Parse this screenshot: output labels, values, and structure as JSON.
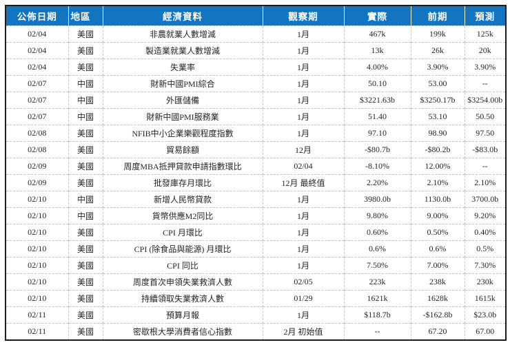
{
  "table": {
    "headers": [
      "公佈日期",
      "地區",
      "經濟資料",
      "觀察期",
      "實際",
      "前期",
      "預測"
    ],
    "rows": [
      [
        "02/04",
        "美國",
        "非農就業人數增減",
        "1月",
        "467k",
        "199k",
        "125k"
      ],
      [
        "02/04",
        "美國",
        "製造業就業人數增減",
        "1月",
        "13k",
        "26k",
        "20k"
      ],
      [
        "02/04",
        "美國",
        "失業率",
        "1月",
        "4.00%",
        "3.90%",
        "3.90%"
      ],
      [
        "02/07",
        "中國",
        "財新中國PMI綜合",
        "1月",
        "50.10",
        "53.00",
        "--"
      ],
      [
        "02/07",
        "中國",
        "外匯儲備",
        "1月",
        "$3221.63b",
        "$3250.17b",
        "$3254.00b"
      ],
      [
        "02/07",
        "中國",
        "財新中國PMI服務業",
        "1月",
        "51.40",
        "53.10",
        "50.50"
      ],
      [
        "02/08",
        "美國",
        "NFIB中小企業樂觀程度指數",
        "1月",
        "97.10",
        "98.90",
        "97.50"
      ],
      [
        "02/08",
        "美國",
        "貿易餘額",
        "12月",
        "-$80.7b",
        "-$80.2b",
        "-$83.0b"
      ],
      [
        "02/09",
        "美國",
        "周度MBA抵押貸款申請指數環比",
        "02/04",
        "-8.10%",
        "12.00%",
        "--"
      ],
      [
        "02/09",
        "美國",
        "批發庫存月環比",
        "12月 最終值",
        "2.20%",
        "2.10%",
        "2.10%"
      ],
      [
        "02/10",
        "中國",
        "新增人民幣貸款",
        "1月",
        "3980.0b",
        "1130.0b",
        "3700.0b"
      ],
      [
        "02/10",
        "中國",
        "貨幣供應M2同比",
        "1月",
        "9.80%",
        "9.00%",
        "9.20%"
      ],
      [
        "02/10",
        "美國",
        "CPI 月環比",
        "1月",
        "0.60%",
        "0.50%",
        "0.40%"
      ],
      [
        "02/10",
        "美國",
        "CPI (除食品與能源) 月環比",
        "1月",
        "0.6%",
        "0.6%",
        "0.5%"
      ],
      [
        "02/10",
        "美國",
        "CPI 同比",
        "1月",
        "7.50%",
        "7.00%",
        "7.30%"
      ],
      [
        "02/10",
        "美國",
        "周度首次申領失業救濟人數",
        "02/05",
        "223k",
        "238k",
        "230k"
      ],
      [
        "02/10",
        "美國",
        "持續領取失業救濟人數",
        "01/29",
        "1621k",
        "1628k",
        "1615k"
      ],
      [
        "02/11",
        "美國",
        "預算月報",
        "1月",
        "$118.7b",
        "-$162.8b",
        "$23.0b"
      ],
      [
        "02/11",
        "美國",
        "密歇根大學消費者信心指數",
        "2月 初始值",
        "--",
        "67.20",
        "67.00"
      ]
    ],
    "colors": {
      "header_bg": "#1375BF",
      "header_text": "#FFFFFF",
      "body_text": "#262626",
      "outer_border": "#1B1B1B",
      "grid_dash": "#C3C3C3"
    }
  }
}
